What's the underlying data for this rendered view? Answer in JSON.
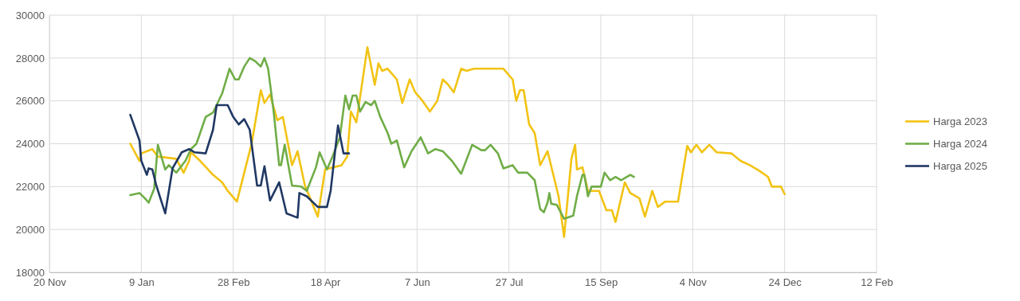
{
  "chart_data": {
    "type": "line",
    "grid": true,
    "legend": "right",
    "line_style": "solid",
    "marker": "none",
    "xlim": [
      "2023-11-20",
      "2025-02-12"
    ],
    "xticks": [
      {
        "value": "2023-11-20",
        "label": "20 Nov"
      },
      {
        "value": "2024-01-09",
        "label": "9 Jan"
      },
      {
        "value": "2024-02-28",
        "label": "28 Feb"
      },
      {
        "value": "2024-04-18",
        "label": "18 Apr"
      },
      {
        "value": "2024-06-07",
        "label": "7 Jun"
      },
      {
        "value": "2024-07-27",
        "label": "27 Jul"
      },
      {
        "value": "2024-09-15",
        "label": "15 Sep"
      },
      {
        "value": "2024-11-04",
        "label": "4 Nov"
      },
      {
        "value": "2024-12-24",
        "label": "24 Dec"
      },
      {
        "value": "2025-02-12",
        "label": "12 Feb"
      }
    ],
    "ylim": [
      18000,
      30000
    ],
    "yticks": [
      18000,
      20000,
      22000,
      24000,
      26000,
      28000,
      30000
    ],
    "series": [
      {
        "name": "Harga 2023",
        "color": "#f2c314",
        "x": [
          "2024-01-03",
          "2024-01-08",
          "2024-01-09",
          "2024-01-15",
          "2024-01-18",
          "2024-01-28",
          "2024-02-01",
          "2024-02-04",
          "2024-02-05",
          "2024-02-10",
          "2024-02-17",
          "2024-02-22",
          "2024-02-25",
          "2024-03-01",
          "2024-03-05",
          "2024-03-09",
          "2024-03-14",
          "2024-03-16",
          "2024-03-19",
          "2024-03-23",
          "2024-03-26",
          "2024-03-31",
          "2024-04-03",
          "2024-04-07",
          "2024-04-14",
          "2024-04-18",
          "2024-04-27",
          "2024-04-30",
          "2024-05-02",
          "2024-05-05",
          "2024-05-11",
          "2024-05-15",
          "2024-05-17",
          "2024-05-19",
          "2024-05-22",
          "2024-05-27",
          "2024-05-30",
          "2024-06-03",
          "2024-06-06",
          "2024-06-10",
          "2024-06-14",
          "2024-06-18",
          "2024-06-21",
          "2024-06-24",
          "2024-06-27",
          "2024-07-01",
          "2024-07-04",
          "2024-07-08",
          "2024-07-24",
          "2024-07-29",
          "2024-07-31",
          "2024-08-02",
          "2024-08-04",
          "2024-08-07",
          "2024-08-10",
          "2024-08-13",
          "2024-08-17",
          "2024-08-23",
          "2024-08-26",
          "2024-08-30",
          "2024-09-01",
          "2024-09-02",
          "2024-09-05",
          "2024-09-08",
          "2024-09-14",
          "2024-09-18",
          "2024-09-21",
          "2024-09-23",
          "2024-09-28",
          "2024-10-01",
          "2024-10-06",
          "2024-10-09",
          "2024-10-13",
          "2024-10-16",
          "2024-10-20",
          "2024-10-27",
          "2024-11-01",
          "2024-11-03",
          "2024-11-06",
          "2024-11-09",
          "2024-11-13",
          "2024-11-17",
          "2024-11-25",
          "2024-11-30",
          "2024-12-05",
          "2024-12-10",
          "2024-12-15",
          "2024-12-17",
          "2024-12-22",
          "2024-12-24"
        ],
        "values": [
          24000,
          23200,
          23550,
          23750,
          23400,
          23300,
          22650,
          23200,
          23600,
          23200,
          22550,
          22200,
          21800,
          21300,
          22650,
          24000,
          26500,
          25900,
          26300,
          25100,
          25250,
          23000,
          23650,
          22050,
          20600,
          22800,
          23000,
          23400,
          25500,
          25000,
          28500,
          26750,
          27750,
          27400,
          27500,
          27000,
          25900,
          27000,
          26400,
          26000,
          25500,
          26000,
          27000,
          26750,
          26400,
          27500,
          27400,
          27500,
          27500,
          27000,
          26000,
          26500,
          26500,
          24900,
          24500,
          23000,
          23650,
          21550,
          19650,
          23300,
          23950,
          22800,
          22900,
          21800,
          21800,
          20900,
          20900,
          20350,
          22200,
          21700,
          21450,
          20600,
          21800,
          21050,
          21300,
          21300,
          23900,
          23600,
          23950,
          23600,
          23950,
          23600,
          23550,
          23200,
          23000,
          22750,
          22450,
          22000,
          22000,
          21650
        ]
      },
      {
        "name": "Harga 2024",
        "color": "#70ad47",
        "x": [
          "2024-01-03",
          "2024-01-08",
          "2024-01-11",
          "2024-01-13",
          "2024-01-16",
          "2024-01-18",
          "2024-01-22",
          "2024-01-24",
          "2024-01-28",
          "2024-02-02",
          "2024-02-05",
          "2024-02-08",
          "2024-02-13",
          "2024-02-17",
          "2024-02-22",
          "2024-02-26",
          "2024-02-29",
          "2024-03-02",
          "2024-03-05",
          "2024-03-08",
          "2024-03-11",
          "2024-03-14",
          "2024-03-16",
          "2024-03-18",
          "2024-03-21",
          "2024-03-24",
          "2024-03-25",
          "2024-03-27",
          "2024-03-31",
          "2024-04-05",
          "2024-04-08",
          "2024-04-13",
          "2024-04-15",
          "2024-04-19",
          "2024-04-22",
          "2024-04-26",
          "2024-04-29",
          "2024-05-01",
          "2024-05-03",
          "2024-05-05",
          "2024-05-07",
          "2024-05-10",
          "2024-05-13",
          "2024-05-15",
          "2024-05-18",
          "2024-05-22",
          "2024-05-24",
          "2024-05-27",
          "2024-05-31",
          "2024-06-04",
          "2024-06-09",
          "2024-06-13",
          "2024-06-17",
          "2024-06-21",
          "2024-06-26",
          "2024-07-01",
          "2024-07-07",
          "2024-07-12",
          "2024-07-14",
          "2024-07-17",
          "2024-07-21",
          "2024-07-24",
          "2024-07-29",
          "2024-08-01",
          "2024-08-06",
          "2024-08-10",
          "2024-08-13",
          "2024-08-15",
          "2024-08-17",
          "2024-08-18",
          "2024-08-19",
          "2024-08-22",
          "2024-08-26",
          "2024-08-31",
          "2024-09-02",
          "2024-09-05",
          "2024-09-06",
          "2024-09-08",
          "2024-09-10",
          "2024-09-15",
          "2024-09-17",
          "2024-09-20",
          "2024-09-23",
          "2024-09-26",
          "2024-10-01",
          "2024-10-03"
        ],
        "values": [
          21600,
          21700,
          21450,
          21250,
          21900,
          23950,
          22800,
          23000,
          22650,
          23200,
          23750,
          24000,
          25250,
          25450,
          26350,
          27500,
          27000,
          27000,
          27600,
          28000,
          27850,
          27600,
          28000,
          27500,
          25500,
          23000,
          23000,
          23950,
          22050,
          22000,
          21800,
          22900,
          23600,
          22800,
          23400,
          24300,
          26250,
          25600,
          26250,
          26250,
          25500,
          25950,
          25800,
          26000,
          25250,
          24500,
          24000,
          24150,
          22900,
          23650,
          24300,
          23550,
          23750,
          23650,
          23200,
          22600,
          23950,
          23700,
          23700,
          23950,
          23550,
          22850,
          23000,
          22650,
          22650,
          22300,
          20950,
          20800,
          21250,
          21700,
          21200,
          21150,
          20500,
          20650,
          21550,
          22550,
          22550,
          21550,
          22000,
          22000,
          22650,
          22300,
          22450,
          22300,
          22550,
          22450
        ]
      },
      {
        "name": "Harga 2025",
        "color": "#203864",
        "x": [
          "2024-01-03",
          "2024-01-08",
          "2024-01-09",
          "2024-01-12",
          "2024-01-13",
          "2024-01-15",
          "2024-01-17",
          "2024-01-22",
          "2024-01-26",
          "2024-01-31",
          "2024-02-04",
          "2024-02-07",
          "2024-02-13",
          "2024-02-17",
          "2024-02-19",
          "2024-02-25",
          "2024-02-28",
          "2024-03-02",
          "2024-03-05",
          "2024-03-08",
          "2024-03-12",
          "2024-03-14",
          "2024-03-16",
          "2024-03-19",
          "2024-03-24",
          "2024-03-28",
          "2024-04-03",
          "2024-04-04",
          "2024-04-08",
          "2024-04-14",
          "2024-04-19",
          "2024-04-21",
          "2024-04-25",
          "2024-04-28",
          "2024-05-01"
        ],
        "values": [
          25350,
          24150,
          23200,
          22550,
          22850,
          22800,
          22100,
          20750,
          22850,
          23600,
          23750,
          23600,
          23550,
          24650,
          25800,
          25800,
          25250,
          24900,
          25150,
          24650,
          22050,
          22050,
          22950,
          21350,
          22200,
          20750,
          20550,
          21700,
          21550,
          21050,
          21050,
          21800,
          24850,
          23550,
          23550
        ]
      }
    ]
  }
}
